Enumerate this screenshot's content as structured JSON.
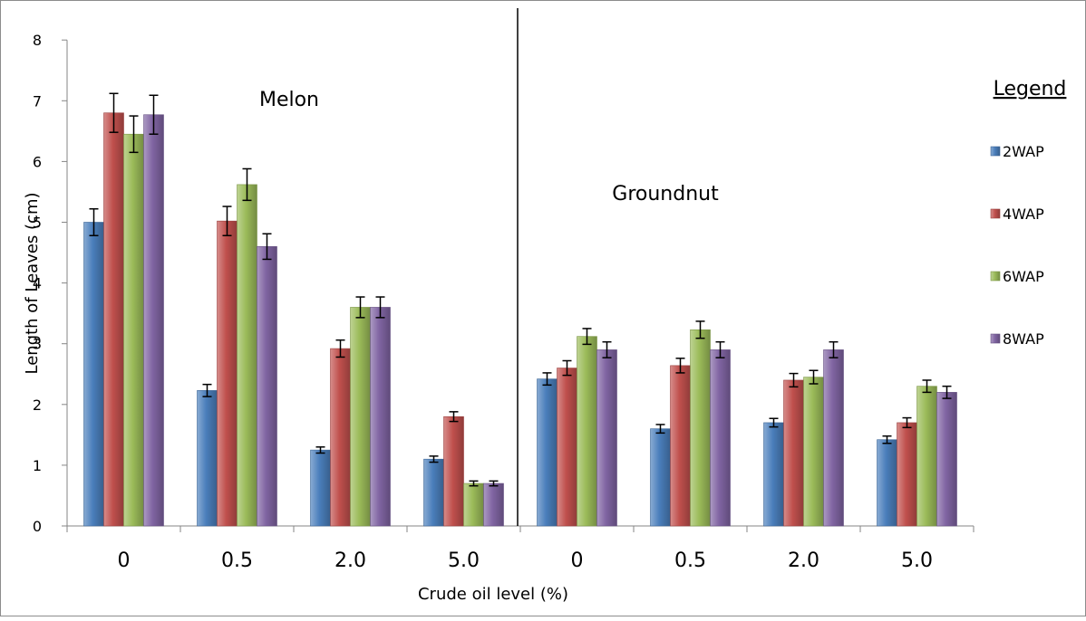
{
  "chart_data": {
    "type": "bar",
    "title": "",
    "xlabel": "Crude oil level (%)",
    "ylabel": "Length of Leaves (cm)",
    "ylim": [
      0,
      8
    ],
    "yticks": [
      0,
      1,
      2,
      3,
      4,
      5,
      6,
      7,
      8
    ],
    "grid": false,
    "legend_position": "right",
    "legend_title": "Legend",
    "categories": [
      "0",
      "0.5",
      "2.0",
      "5.0",
      "0",
      "0.5",
      "2.0",
      "5.0"
    ],
    "groups": [
      {
        "label": "Melon",
        "categories": [
          "0",
          "0.5",
          "2.0",
          "5.0"
        ]
      },
      {
        "label": "Groundnut",
        "categories": [
          "0",
          "0.5",
          "2.0",
          "5.0"
        ]
      }
    ],
    "series": [
      {
        "name": "2WAP",
        "color": "#4a7ebb",
        "values": [
          5.0,
          2.23,
          1.25,
          1.1,
          2.42,
          1.6,
          1.7,
          1.42
        ],
        "errors": [
          0.22,
          0.1,
          0.05,
          0.05,
          0.1,
          0.07,
          0.07,
          0.06
        ]
      },
      {
        "name": "4WAP",
        "color": "#c0504d",
        "values": [
          6.8,
          5.02,
          2.92,
          1.8,
          2.6,
          2.64,
          2.4,
          1.7
        ],
        "errors": [
          0.32,
          0.24,
          0.14,
          0.08,
          0.12,
          0.12,
          0.11,
          0.08
        ]
      },
      {
        "name": "6WAP",
        "color": "#9bbb59",
        "values": [
          6.45,
          5.62,
          3.6,
          0.7,
          3.12,
          3.23,
          2.45,
          2.3
        ],
        "errors": [
          0.3,
          0.26,
          0.17,
          0.04,
          0.13,
          0.14,
          0.11,
          0.1
        ]
      },
      {
        "name": "8WAP",
        "color": "#8064a2",
        "values": [
          6.77,
          4.6,
          3.6,
          0.7,
          2.9,
          2.9,
          2.9,
          2.2
        ],
        "errors": [
          0.32,
          0.21,
          0.17,
          0.04,
          0.13,
          0.13,
          0.13,
          0.1
        ]
      }
    ]
  }
}
